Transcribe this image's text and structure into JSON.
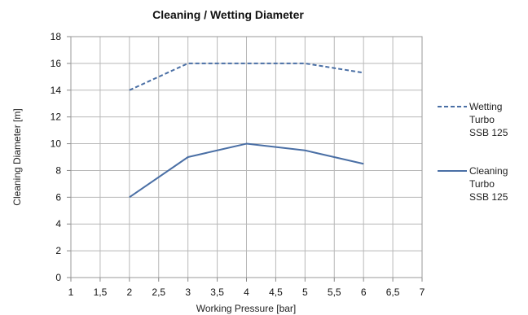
{
  "chart_data": {
    "type": "line",
    "title": "Cleaning / Wetting Diameter",
    "xlabel": "Working Pressure [bar]",
    "ylabel": "Cleaning Diameter [m]",
    "xlim": [
      1,
      7
    ],
    "ylim": [
      0,
      18
    ],
    "x_ticks": [
      "1",
      "1,5",
      "2",
      "2,5",
      "3",
      "3,5",
      "4",
      "4,5",
      "5",
      "5,5",
      "6",
      "6,5",
      "7"
    ],
    "y_ticks": [
      "0",
      "2",
      "4",
      "6",
      "8",
      "10",
      "12",
      "14",
      "16",
      "18"
    ],
    "grid": true,
    "legend_position": "right",
    "series": [
      {
        "name_lines": [
          "Wetting",
          "Turbo",
          "SSB 125"
        ],
        "style": "dashed",
        "color": "#4a6fa5",
        "x": [
          2,
          3,
          4,
          5,
          6
        ],
        "y": [
          14,
          16,
          16,
          16,
          15.3
        ]
      },
      {
        "name_lines": [
          "Cleaning",
          "Turbo",
          "SSB 125"
        ],
        "style": "solid",
        "color": "#4a6fa5",
        "x": [
          2,
          3,
          3.5,
          4,
          5,
          6
        ],
        "y": [
          6,
          9,
          9.5,
          10,
          9.5,
          8.5
        ]
      }
    ]
  }
}
